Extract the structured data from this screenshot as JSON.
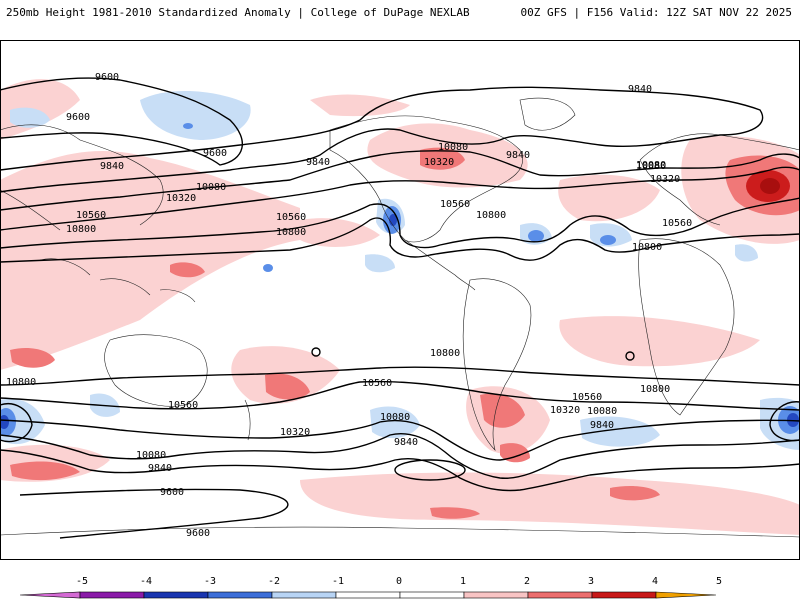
{
  "header": {
    "left": "250mb Height 1981-2010 Standardized Anomaly | College of DuPage NEXLAB",
    "right": "00Z GFS | F156 Valid: 12Z SAT NOV 22 2025"
  },
  "contour_labels": [
    "9600",
    "9600",
    "9600",
    "9840",
    "9840",
    "9840",
    "9840",
    "10080",
    "10080",
    "10080",
    "10320",
    "10320",
    "10560",
    "10560",
    "10560",
    "10800",
    "10800",
    "10800",
    "10080",
    "10320",
    "10560",
    "10800",
    "10800",
    "10560",
    "10320",
    "10080",
    "9840",
    "10080",
    "9840",
    "10560",
    "10800",
    "10320",
    "10080",
    "9840",
    "9600",
    "9600",
    "10560",
    "10800"
  ],
  "colorbar": {
    "ticks": [
      "-5",
      "-4",
      "-3",
      "-2",
      "-1",
      "0",
      "1",
      "2",
      "3",
      "4",
      "5"
    ],
    "colors": [
      "#d46ad4",
      "#8a1aa8",
      "#1a36b0",
      "#3c6ed8",
      "#b8d4f4",
      "#ffffff",
      "#ffffff",
      "#f8c4c4",
      "#ec6e6e",
      "#c81818",
      "#f0a000"
    ]
  },
  "anomaly_colors": {
    "weak_pos": "#fbd2d2",
    "mod_pos": "#f07878",
    "strong_pos": "#cc1c1c",
    "weak_neg": "#c8def6",
    "mod_neg": "#5a8ee8",
    "strong_neg": "#2348c0"
  }
}
